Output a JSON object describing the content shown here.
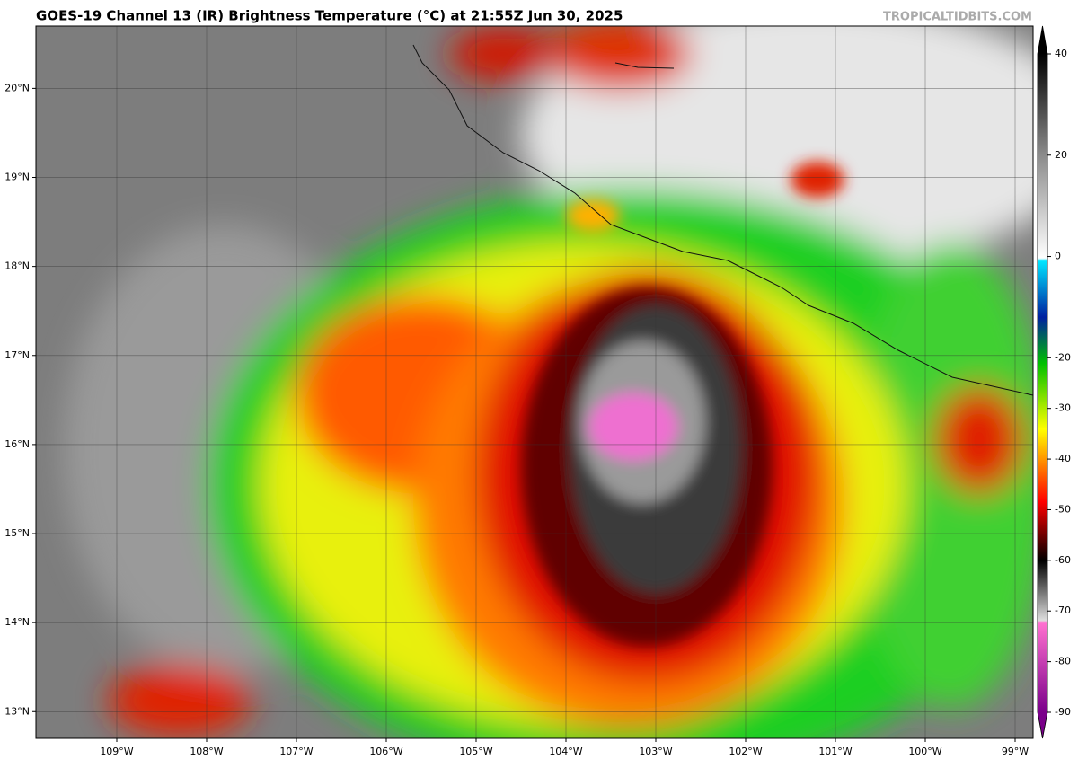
{
  "header": {
    "title": "GOES-19 Channel 13 (IR) Brightness Temperature (°C) at 21:55Z Jun 30, 2025",
    "watermark": "TROPICALTIDBITS.COM"
  },
  "map": {
    "lon_range": [
      -109.9,
      -98.8
    ],
    "lat_range": [
      12.7,
      20.7
    ],
    "lat_ticks": [
      {
        "value": 20,
        "label": "20°N"
      },
      {
        "value": 19,
        "label": "19°N"
      },
      {
        "value": 18,
        "label": "18°N"
      },
      {
        "value": 17,
        "label": "17°N"
      },
      {
        "value": 16,
        "label": "16°N"
      },
      {
        "value": 15,
        "label": "15°N"
      },
      {
        "value": 14,
        "label": "14°N"
      },
      {
        "value": 13,
        "label": "13°N"
      }
    ],
    "lon_ticks": [
      {
        "value": -109,
        "label": "109°W"
      },
      {
        "value": -108,
        "label": "108°W"
      },
      {
        "value": -107,
        "label": "107°W"
      },
      {
        "value": -106,
        "label": "106°W"
      },
      {
        "value": -105,
        "label": "105°W"
      },
      {
        "value": -104,
        "label": "104°W"
      },
      {
        "value": -103,
        "label": "103°W"
      },
      {
        "value": -102,
        "label": "102°W"
      },
      {
        "value": -101,
        "label": "101°W"
      },
      {
        "value": -100,
        "label": "100°W"
      },
      {
        "value": -99,
        "label": "99°W"
      }
    ]
  },
  "colorbar": {
    "lim": [
      -90,
      40
    ],
    "ticks": [
      40,
      20,
      0,
      -20,
      -30,
      -40,
      -50,
      -60,
      -70,
      -80,
      -90
    ]
  }
}
